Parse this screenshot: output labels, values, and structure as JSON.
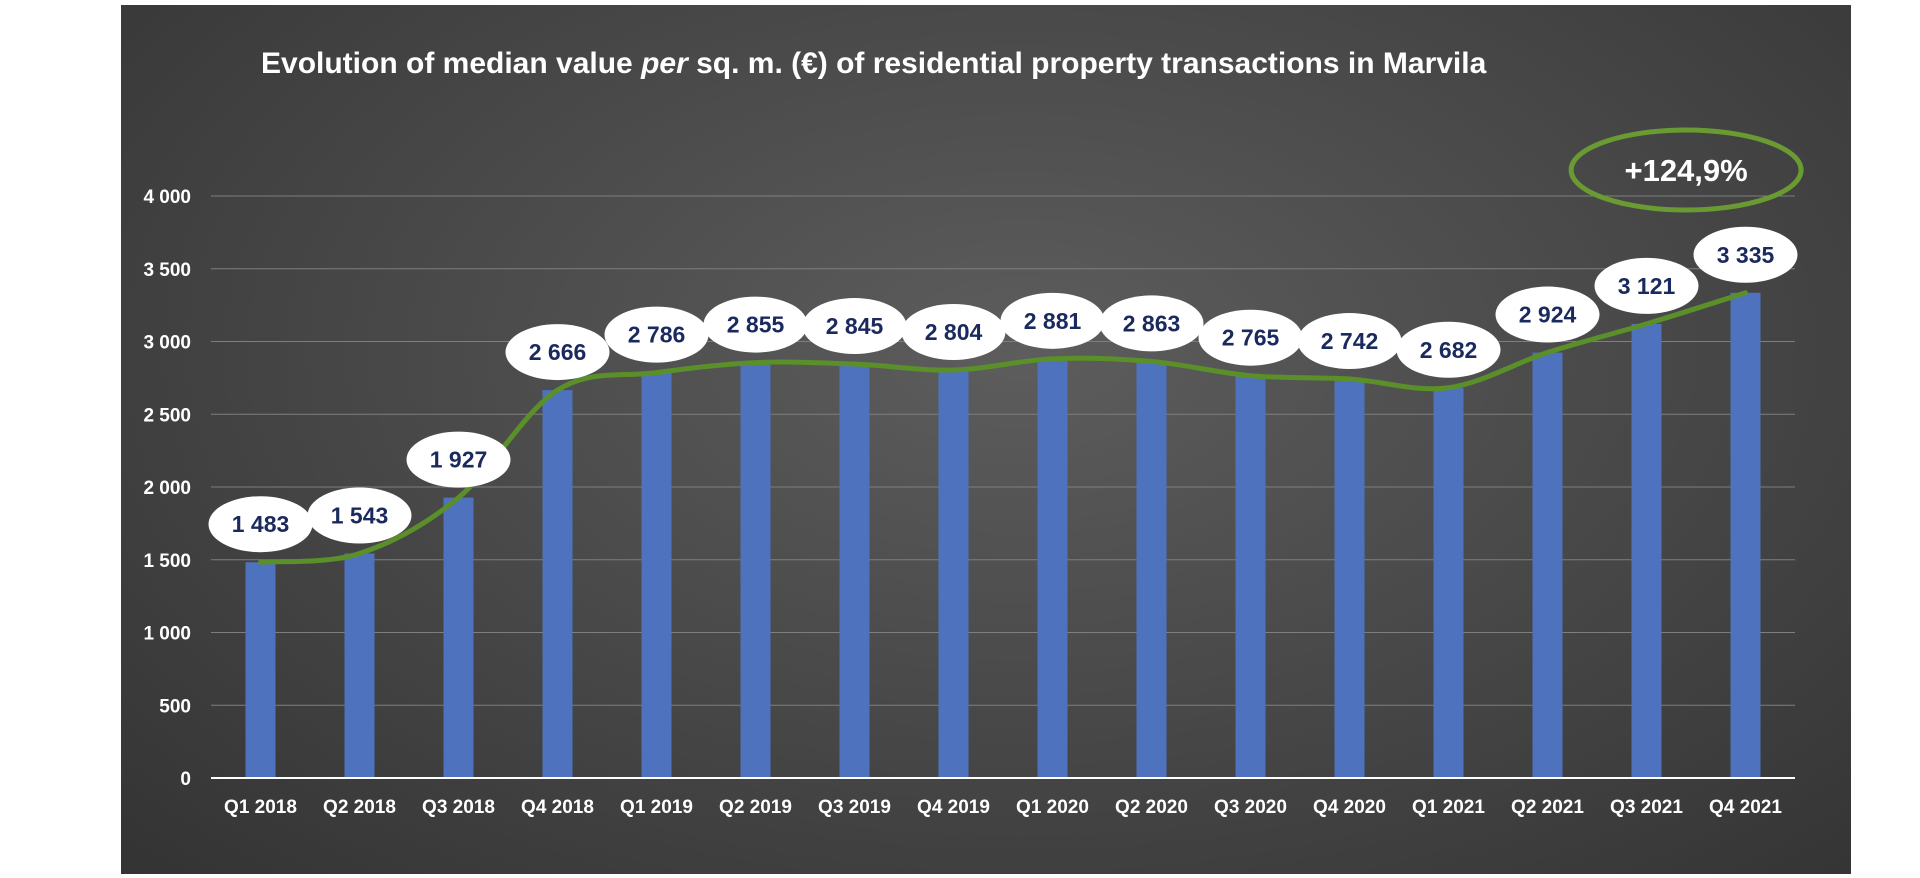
{
  "chart_data": {
    "type": "bar",
    "title_parts": [
      "Evolution of median value ",
      "per",
      " sq. m. (€) of residential property transactions in Marvila"
    ],
    "categories": [
      "Q1 2018",
      "Q2 2018",
      "Q3 2018",
      "Q4 2018",
      "Q1 2019",
      "Q2 2019",
      "Q3 2019",
      "Q4 2019",
      "Q1 2020",
      "Q2 2020",
      "Q3 2020",
      "Q4 2020",
      "Q1 2021",
      "Q2 2021",
      "Q3 2021",
      "Q4 2021"
    ],
    "values": [
      1483,
      1543,
      1927,
      2666,
      2786,
      2855,
      2845,
      2804,
      2881,
      2863,
      2765,
      2742,
      2682,
      2924,
      3121,
      3335
    ],
    "data_labels": [
      "1 483",
      "1 543",
      "1 927",
      "2 666",
      "2 786",
      "2 855",
      "2 845",
      "2 804",
      "2 881",
      "2 863",
      "2 765",
      "2 742",
      "2 682",
      "2 924",
      "3 121",
      "3 335"
    ],
    "ylim": [
      0,
      4000
    ],
    "yticks": [
      0,
      500,
      1000,
      1500,
      2000,
      2500,
      3000,
      3500,
      4000
    ],
    "ytick_labels": [
      "0",
      "500",
      "1 000",
      "1 500",
      "2 000",
      "2 500",
      "3 000",
      "3 500",
      "4 000"
    ],
    "xlabel": "",
    "ylabel": "",
    "grid": true,
    "trendline": true,
    "annotation": "+124,9%",
    "colors": {
      "bar": "#4f72be",
      "trend": "#5a8f2a",
      "annotation_ring": "#6a9a32",
      "grid": "#7e7e7e",
      "axis": "#ffffff",
      "label_bg": "#ffffff",
      "label_text": "#1b2a5e"
    }
  }
}
